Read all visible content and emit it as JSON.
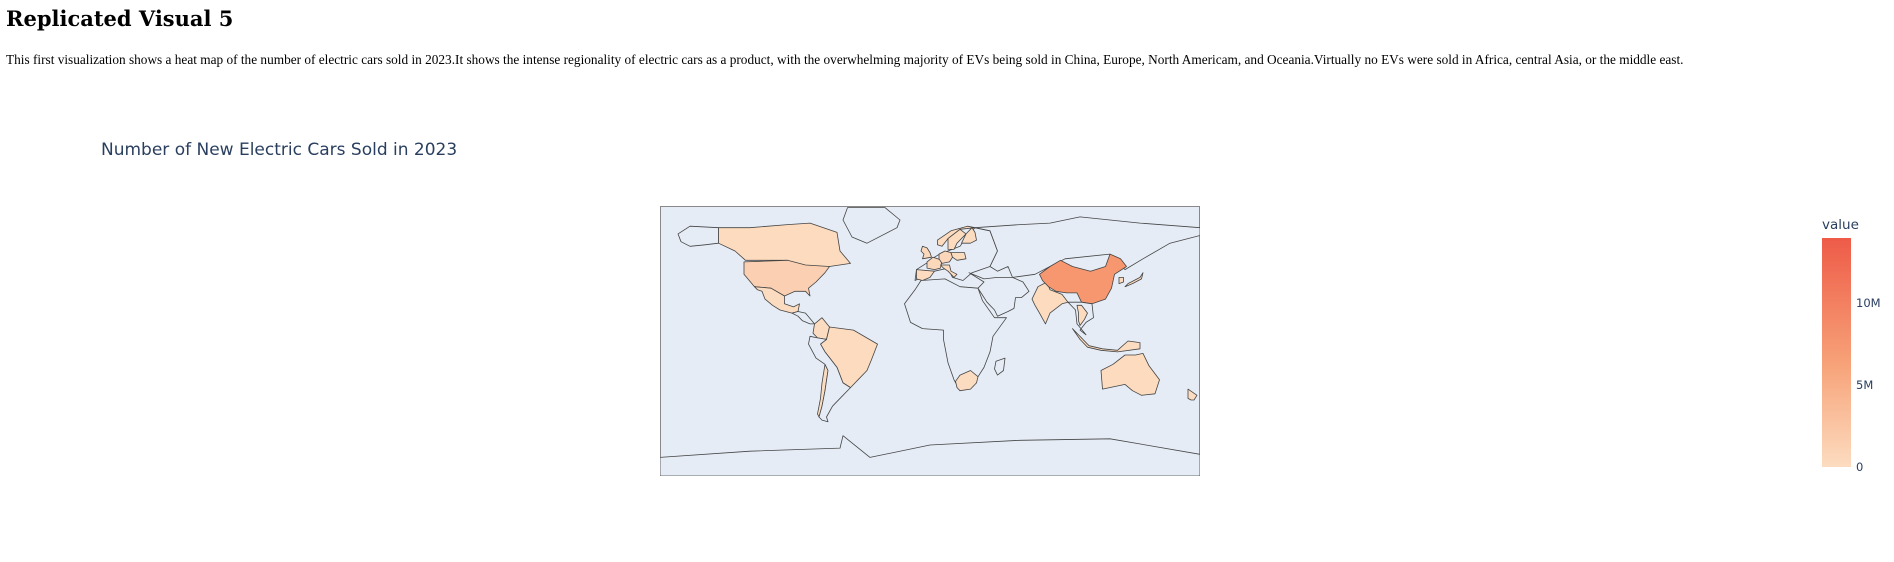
{
  "page": {
    "heading": "Replicated Visual 5",
    "description": "This first visualization shows a heat map of the number of electric cars sold in 2023.It shows the intense regionality of electric cars as a product, with the overwhelming majority of EVs being sold in China, Europe, North Americam, and Oceania.Virtually no EVs were sold in Africa, central Asia, or the middle east."
  },
  "chart_data": {
    "type": "choropleth",
    "title": "Number of New Electric Cars Sold in 2023",
    "projection": "equirectangular",
    "colorbar": {
      "title": "value",
      "range": [
        0,
        14000000
      ],
      "ticks": [
        {
          "value": 0,
          "label": "0"
        },
        {
          "value": 5000000,
          "label": "5M"
        },
        {
          "value": 10000000,
          "label": "10M"
        }
      ],
      "colorscale": [
        "#fcdcc0",
        "#f7a278",
        "#ee5b48"
      ]
    },
    "no_data_color": "#e5ecf6",
    "locations": [
      {
        "region": "China",
        "value": 8100000
      },
      {
        "region": "United States",
        "value": 1400000
      },
      {
        "region": "Canada",
        "value": 180000
      },
      {
        "region": "Mexico",
        "value": 5000
      },
      {
        "region": "Brazil",
        "value": 90000
      },
      {
        "region": "Chile",
        "value": 2000
      },
      {
        "region": "Colombia",
        "value": 8000
      },
      {
        "region": "Germany",
        "value": 700000
      },
      {
        "region": "France",
        "value": 470000
      },
      {
        "region": "United Kingdom",
        "value": 450000
      },
      {
        "region": "Norway",
        "value": 110000
      },
      {
        "region": "Sweden",
        "value": 160000
      },
      {
        "region": "Spain",
        "value": 100000
      },
      {
        "region": "Italy",
        "value": 130000
      },
      {
        "region": "Poland",
        "value": 50000
      },
      {
        "region": "Finland",
        "value": 30000
      },
      {
        "region": "India",
        "value": 80000
      },
      {
        "region": "Japan",
        "value": 140000
      },
      {
        "region": "South Korea",
        "value": 160000
      },
      {
        "region": "Thailand",
        "value": 90000
      },
      {
        "region": "Indonesia",
        "value": 20000
      },
      {
        "region": "Australia",
        "value": 100000
      },
      {
        "region": "New Zealand",
        "value": 30000
      },
      {
        "region": "South Africa",
        "value": 1000
      }
    ]
  }
}
